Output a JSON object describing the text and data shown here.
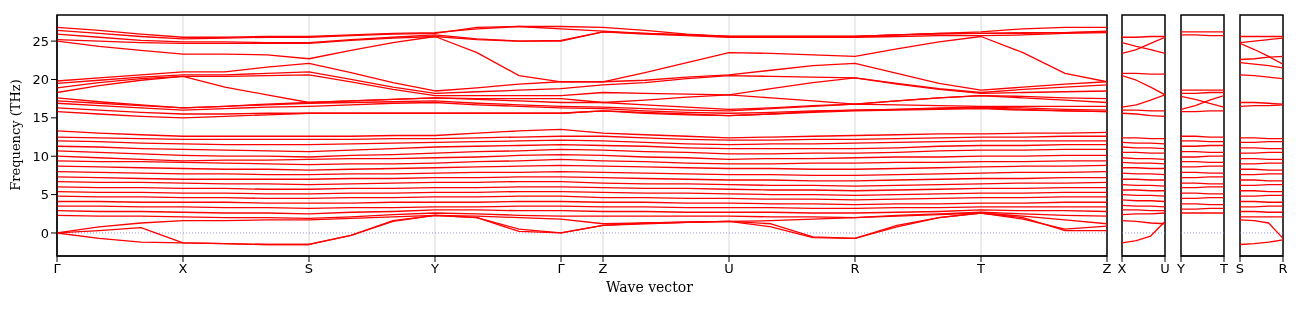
{
  "chart_data": [
    {
      "type": "line",
      "xlabel": "Wave vector",
      "ylabel": "Frequency (THz)",
      "color": "#ff0000",
      "grid": "x",
      "ylim": [
        -3,
        28.4
      ],
      "yticks": [
        0,
        5,
        10,
        15,
        20,
        25
      ],
      "categories": [
        "Γ",
        null,
        null,
        "X",
        null,
        null,
        "S",
        null,
        null,
        "Y",
        null,
        null,
        "Γ",
        "Z",
        null,
        null,
        "U",
        null,
        null,
        "R",
        null,
        null,
        "T",
        null,
        null,
        "Z"
      ],
      "ref_lines": [
        {
          "axis": "y",
          "value": 0,
          "color": "#7777ff",
          "line_style": "dotted"
        }
      ],
      "series": [
        {
          "values": [
            26.8,
            26.4,
            25.9,
            25.5,
            25.5,
            25.6,
            25.6,
            25.8,
            26.0,
            26.1,
            26.6,
            26.9,
            26.9,
            26.8,
            26.4,
            25.9,
            25.6,
            25.6,
            25.6,
            25.6,
            25.8,
            26.0,
            26.2,
            26.6,
            26.8,
            26.8
          ]
        },
        {
          "values": [
            26.4,
            26.0,
            25.6,
            25.3,
            25.4,
            25.5,
            25.5,
            25.7,
            25.9,
            26.0,
            26.8,
            26.9,
            26.6,
            26.3,
            26.0,
            25.8,
            25.6,
            25.6,
            25.6,
            25.6,
            25.8,
            26.0,
            26.0,
            26.0,
            26.1,
            26.3
          ]
        },
        {
          "values": [
            25.9,
            25.5,
            25.1,
            24.9,
            24.9,
            24.8,
            24.8,
            25.2,
            25.5,
            25.8,
            25.3,
            25.0,
            25.1,
            26.2,
            26.0,
            25.8,
            25.6,
            25.6,
            25.6,
            25.6,
            25.8,
            25.9,
            26.0,
            26.1,
            26.1,
            26.2
          ]
        },
        {
          "values": [
            25.2,
            25.0,
            24.8,
            24.7,
            24.7,
            24.7,
            24.7,
            25.1,
            25.4,
            25.6,
            25.2,
            25.0,
            25.0,
            26.2,
            25.9,
            25.7,
            25.5,
            25.5,
            25.5,
            25.5,
            25.6,
            25.7,
            25.7,
            25.8,
            26.0,
            26.1
          ]
        },
        {
          "values": [
            25.0,
            24.3,
            23.8,
            23.3,
            23.3,
            23.2,
            22.7,
            23.8,
            24.8,
            25.6,
            23.5,
            20.5,
            19.7,
            19.7,
            20.9,
            22.2,
            23.5,
            23.4,
            23.2,
            23.0,
            24.0,
            24.9,
            25.6,
            23.5,
            20.8,
            19.7
          ]
        },
        {
          "values": [
            19.8,
            20.2,
            20.6,
            21.0,
            21.0,
            21.6,
            22.1,
            20.9,
            19.6,
            18.5,
            18.9,
            19.4,
            19.7,
            19.7,
            19.9,
            20.3,
            20.6,
            21.2,
            21.8,
            22.1,
            20.8,
            19.5,
            18.6,
            19.0,
            19.4,
            19.7
          ]
        },
        {
          "values": [
            19.5,
            19.9,
            20.3,
            20.6,
            20.6,
            20.8,
            21.0,
            20.0,
            19.0,
            18.2,
            18.4,
            18.6,
            18.8,
            19.3,
            19.6,
            20.1,
            20.5,
            20.4,
            20.3,
            20.2,
            19.5,
            18.8,
            18.3,
            18.7,
            19.0,
            19.3
          ]
        },
        {
          "values": [
            18.9,
            19.6,
            20.1,
            20.4,
            20.4,
            20.5,
            20.6,
            19.7,
            18.7,
            17.9,
            17.9,
            17.9,
            17.9,
            18.3,
            18.2,
            18.1,
            18.0,
            18.8,
            19.6,
            20.2,
            19.4,
            18.7,
            18.2,
            18.3,
            18.4,
            18.5
          ]
        },
        {
          "values": [
            18.3,
            19.2,
            19.9,
            20.4,
            19.0,
            18.0,
            17.0,
            17.2,
            17.4,
            17.6,
            17.5,
            17.5,
            17.5,
            17.0,
            17.3,
            17.7,
            18.0,
            17.6,
            17.2,
            16.8,
            17.2,
            17.6,
            17.9,
            17.8,
            17.6,
            17.5
          ]
        },
        {
          "values": [
            17.6,
            17.1,
            16.7,
            16.3,
            16.5,
            16.8,
            17.0,
            17.2,
            17.4,
            17.6,
            17.4,
            17.2,
            17.0,
            17.0,
            16.7,
            16.4,
            16.1,
            16.3,
            16.6,
            16.8,
            17.2,
            17.6,
            17.9,
            17.6,
            17.3,
            17.0
          ]
        },
        {
          "values": [
            17.2,
            16.9,
            16.6,
            16.3,
            16.5,
            16.7,
            16.9,
            17.0,
            17.1,
            17.2,
            16.9,
            16.7,
            16.5,
            16.4,
            16.2,
            16.0,
            15.9,
            16.2,
            16.5,
            16.8,
            16.7,
            16.6,
            16.5,
            16.5,
            16.5,
            16.5
          ]
        },
        {
          "values": [
            16.9,
            16.6,
            16.3,
            16.0,
            16.2,
            16.4,
            16.5,
            16.7,
            16.9,
            17.0,
            16.7,
            16.5,
            16.3,
            16.2,
            15.9,
            15.7,
            15.6,
            15.7,
            15.9,
            16.0,
            16.1,
            16.3,
            16.4,
            16.3,
            16.1,
            16.0
          ]
        },
        {
          "values": [
            16.3,
            16.0,
            15.7,
            15.5,
            15.5,
            15.6,
            15.6,
            15.6,
            15.6,
            15.6,
            15.6,
            15.6,
            15.6,
            15.9,
            15.7,
            15.5,
            15.3,
            15.5,
            15.8,
            16.0,
            16.1,
            16.2,
            16.3,
            16.1,
            15.9,
            15.8
          ]
        },
        {
          "values": [
            15.8,
            15.5,
            15.2,
            15.0,
            15.2,
            15.4,
            15.6,
            15.6,
            15.6,
            15.6,
            15.6,
            15.6,
            15.6,
            15.9,
            15.6,
            15.4,
            15.3,
            15.5,
            15.7,
            15.9,
            16.0,
            16.1,
            16.2,
            16.0,
            15.9,
            15.8
          ]
        },
        {
          "values": [
            13.3,
            13.0,
            12.8,
            12.6,
            12.6,
            12.6,
            12.6,
            12.6,
            12.7,
            12.7,
            13.0,
            13.3,
            13.5,
            13.0,
            12.8,
            12.6,
            12.4,
            12.5,
            12.6,
            12.7,
            12.8,
            12.9,
            12.9,
            13.0,
            13.0,
            13.1
          ]
        },
        {
          "values": [
            12.5,
            12.4,
            12.3,
            12.2,
            12.2,
            12.2,
            12.2,
            12.2,
            12.3,
            12.3,
            12.4,
            12.5,
            12.6,
            12.6,
            12.4,
            12.2,
            12.1,
            12.1,
            12.2,
            12.2,
            12.3,
            12.4,
            12.5,
            12.5,
            12.6,
            12.6
          ]
        },
        {
          "values": [
            12.0,
            11.9,
            11.7,
            11.6,
            11.5,
            11.5,
            11.5,
            11.6,
            11.7,
            11.8,
            11.9,
            12.0,
            12.1,
            12.0,
            11.8,
            11.6,
            11.5,
            11.6,
            11.6,
            11.7,
            11.8,
            11.9,
            12.0,
            12.0,
            12.0,
            12.0
          ]
        },
        {
          "values": [
            11.3,
            11.2,
            11.0,
            10.9,
            10.8,
            10.7,
            10.6,
            10.8,
            11.0,
            11.2,
            11.3,
            11.4,
            11.5,
            11.4,
            11.3,
            11.1,
            11.0,
            11.0,
            11.0,
            11.0,
            11.1,
            11.3,
            11.4,
            11.4,
            11.5,
            11.5
          ]
        },
        {
          "values": [
            10.7,
            10.5,
            10.3,
            10.1,
            10.0,
            10.0,
            9.9,
            10.1,
            10.2,
            10.4,
            10.6,
            10.7,
            10.9,
            10.8,
            10.6,
            10.5,
            10.3,
            10.3,
            10.4,
            10.4,
            10.5,
            10.7,
            10.8,
            10.8,
            10.9,
            10.9
          ]
        },
        {
          "values": [
            10.0,
            9.8,
            9.6,
            9.4,
            9.5,
            9.5,
            9.6,
            9.7,
            9.7,
            9.8,
            9.9,
            10.1,
            10.2,
            10.1,
            9.9,
            9.8,
            9.6,
            9.7,
            9.7,
            9.8,
            9.9,
            9.9,
            10.0,
            10.0,
            10.1,
            10.1
          ]
        },
        {
          "values": [
            9.4,
            9.3,
            9.3,
            9.2,
            9.1,
            9.0,
            8.9,
            9.0,
            9.0,
            9.1,
            9.3,
            9.4,
            9.6,
            9.4,
            9.3,
            9.1,
            9.0,
            9.0,
            9.1,
            9.1,
            9.2,
            9.2,
            9.3,
            9.3,
            9.4,
            9.4
          ]
        },
        {
          "values": [
            8.7,
            8.6,
            8.5,
            8.4,
            8.3,
            8.3,
            8.2,
            8.3,
            8.4,
            8.5,
            8.6,
            8.7,
            8.8,
            8.7,
            8.6,
            8.5,
            8.4,
            8.4,
            8.3,
            8.3,
            8.4,
            8.5,
            8.6,
            8.7,
            8.7,
            8.8
          ]
        },
        {
          "values": [
            8.0,
            7.9,
            7.8,
            7.7,
            7.7,
            7.6,
            7.6,
            7.7,
            7.7,
            7.8,
            7.9,
            7.9,
            8.0,
            7.9,
            7.8,
            7.7,
            7.6,
            7.6,
            7.5,
            7.5,
            7.6,
            7.7,
            7.8,
            7.9,
            7.9,
            8.0
          ]
        },
        {
          "values": [
            7.3,
            7.2,
            7.1,
            7.0,
            7.0,
            7.0,
            7.0,
            7.1,
            7.1,
            7.2,
            7.2,
            7.3,
            7.3,
            7.2,
            7.1,
            7.0,
            6.9,
            6.9,
            6.8,
            6.8,
            6.9,
            7.0,
            7.1,
            7.1,
            7.2,
            7.2
          ]
        },
        {
          "values": [
            6.7,
            6.6,
            6.6,
            6.5,
            6.4,
            6.4,
            6.3,
            6.4,
            6.5,
            6.6,
            6.6,
            6.7,
            6.7,
            6.5,
            6.4,
            6.4,
            6.3,
            6.2,
            6.2,
            6.1,
            6.2,
            6.3,
            6.4,
            6.5,
            6.5,
            6.6
          ]
        },
        {
          "values": [
            6.0,
            5.9,
            5.9,
            5.8,
            5.8,
            5.7,
            5.7,
            5.8,
            5.8,
            5.9,
            5.9,
            6.0,
            6.0,
            5.9,
            5.8,
            5.8,
            5.7,
            5.6,
            5.6,
            5.5,
            5.6,
            5.7,
            5.8,
            5.8,
            5.9,
            5.9
          ]
        },
        {
          "values": [
            5.4,
            5.3,
            5.3,
            5.2,
            5.2,
            5.1,
            5.1,
            5.2,
            5.2,
            5.3,
            5.3,
            5.4,
            5.4,
            5.3,
            5.2,
            5.2,
            5.1,
            5.0,
            5.0,
            4.9,
            5.0,
            5.1,
            5.2,
            5.2,
            5.3,
            5.3
          ]
        },
        {
          "values": [
            4.8,
            4.7,
            4.7,
            4.6,
            4.6,
            4.5,
            4.5,
            4.6,
            4.6,
            4.7,
            4.7,
            4.8,
            4.8,
            4.6,
            4.6,
            4.5,
            4.5,
            4.4,
            4.4,
            4.3,
            4.4,
            4.5,
            4.6,
            4.6,
            4.7,
            4.7
          ]
        },
        {
          "values": [
            4.1,
            4.1,
            4.0,
            4.0,
            4.0,
            3.9,
            3.9,
            3.9,
            4.0,
            4.0,
            4.0,
            4.1,
            4.1,
            4.0,
            4.0,
            3.9,
            3.9,
            3.8,
            3.8,
            3.7,
            3.8,
            3.8,
            3.9,
            3.9,
            4.0,
            4.0
          ]
        },
        {
          "values": [
            3.5,
            3.5,
            3.4,
            3.4,
            3.3,
            3.3,
            3.2,
            3.3,
            3.3,
            3.4,
            3.4,
            3.5,
            3.5,
            3.4,
            3.4,
            3.3,
            3.3,
            3.3,
            3.2,
            3.2,
            3.3,
            3.3,
            3.4,
            3.4,
            3.4,
            3.4
          ]
        },
        {
          "values": [
            2.9,
            2.8,
            2.8,
            2.7,
            2.6,
            2.6,
            2.5,
            2.7,
            2.8,
            3.0,
            3.0,
            2.9,
            2.9,
            2.8,
            2.8,
            2.7,
            2.7,
            2.7,
            2.6,
            2.6,
            2.7,
            2.8,
            3.0,
            2.9,
            2.9,
            2.8
          ]
        },
        {
          "values": [
            2.3,
            2.2,
            2.2,
            2.1,
            2.0,
            2.0,
            1.9,
            2.1,
            2.4,
            2.6,
            2.5,
            2.3,
            2.2,
            2.2,
            2.2,
            2.2,
            2.2,
            2.1,
            2.1,
            2.0,
            2.3,
            2.5,
            2.7,
            2.5,
            2.3,
            2.2
          ]
        },
        {
          "values": [
            0,
            0.8,
            1.3,
            1.6,
            1.6,
            1.7,
            1.7,
            1.9,
            2.1,
            2.3,
            2.2,
            2.0,
            1.8,
            1.2,
            1.3,
            1.4,
            1.5,
            1.6,
            1.8,
            2.0,
            2.2,
            2.4,
            2.6,
            2.2,
            1.7,
            1.2
          ]
        },
        {
          "values": [
            0,
            -0.7,
            -1.2,
            -1.3,
            -1.4,
            -1.5,
            -1.5,
            -0.3,
            1.5,
            2.3,
            2.0,
            0.2,
            0,
            1.0,
            1.3,
            1.4,
            1.5,
            1.2,
            -0.5,
            -0.7,
            1.0,
            2.0,
            2.6,
            2.0,
            0.3,
            0.3
          ]
        },
        {
          "values": [
            0,
            0.3,
            0.7,
            -1.3,
            -1.4,
            -1.5,
            -1.5,
            -0.3,
            1.6,
            2.3,
            2.0,
            0.5,
            0,
            1.0,
            1.2,
            1.4,
            1.5,
            0.8,
            -0.6,
            -0.7,
            0.8,
            2.0,
            2.6,
            1.8,
            0.5,
            0.9
          ]
        }
      ]
    },
    {
      "type": "line",
      "color": "#ff0000",
      "tick_labels": "x",
      "ylim": [
        -3,
        28.4
      ],
      "categories": [
        "X",
        null,
        null,
        "U"
      ],
      "ref_lines": [
        {
          "axis": "y",
          "value": 0,
          "color": "#7777ff",
          "line_style": "dotted"
        }
      ],
      "series": [
        {
          "values": [
            25.5,
            25.5,
            25.6,
            25.6
          ]
        },
        {
          "values": [
            24.8,
            24.3,
            23.9,
            23.4
          ]
        },
        {
          "values": [
            23.4,
            23.9,
            24.7,
            25.5
          ]
        },
        {
          "values": [
            20.8,
            20.8,
            20.7,
            20.7
          ]
        },
        {
          "values": [
            20.5,
            19.9,
            19.0,
            18.0
          ]
        },
        {
          "values": [
            16.4,
            16.7,
            17.3,
            18.0
          ]
        },
        {
          "values": [
            16.0,
            16.0,
            15.9,
            15.9
          ]
        },
        {
          "values": [
            15.6,
            15.5,
            15.3,
            15.2
          ]
        },
        {
          "values": [
            12.4,
            12.4,
            12.3,
            12.3
          ]
        },
        {
          "values": [
            11.8,
            11.7,
            11.7,
            11.6
          ]
        },
        {
          "values": [
            11.2,
            11.1,
            11.1,
            11.0
          ]
        },
        {
          "values": [
            10.5,
            10.5,
            10.4,
            10.4
          ]
        },
        {
          "values": [
            9.8,
            9.7,
            9.7,
            9.6
          ]
        },
        {
          "values": [
            9.2,
            9.1,
            9.1,
            9.0
          ]
        },
        {
          "values": [
            8.5,
            8.5,
            8.4,
            8.4
          ]
        },
        {
          "values": [
            7.8,
            7.7,
            7.7,
            7.6
          ]
        },
        {
          "values": [
            7.0,
            7.0,
            6.9,
            6.9
          ]
        },
        {
          "values": [
            6.3,
            6.2,
            6.2,
            6.1
          ]
        },
        {
          "values": [
            5.6,
            5.6,
            5.5,
            5.5
          ]
        },
        {
          "values": [
            5.0,
            4.9,
            4.9,
            4.8
          ]
        },
        {
          "values": [
            4.3,
            4.2,
            4.2,
            4.1
          ]
        },
        {
          "values": [
            3.6,
            3.5,
            3.5,
            3.4
          ]
        },
        {
          "values": [
            3.0,
            3.0,
            2.9,
            2.9
          ]
        },
        {
          "values": [
            2.4,
            2.5,
            2.5,
            2.6
          ]
        },
        {
          "values": [
            1.6,
            1.5,
            1.3,
            1.2
          ]
        },
        {
          "values": [
            -1.3,
            -1.0,
            -0.4,
            1.5
          ]
        }
      ]
    },
    {
      "type": "line",
      "color": "#ff0000",
      "tick_labels": "x",
      "ylim": [
        -3,
        28.4
      ],
      "categories": [
        "Y",
        null,
        null,
        "T"
      ],
      "ref_lines": [
        {
          "axis": "y",
          "value": 0,
          "color": "#7777ff",
          "line_style": "dotted"
        }
      ],
      "series": [
        {
          "values": [
            26.2,
            26.2,
            26.2,
            26.2
          ]
        },
        {
          "values": [
            25.8,
            25.8,
            25.7,
            25.7
          ]
        },
        {
          "values": [
            18.6,
            18.6,
            18.6,
            18.6
          ]
        },
        {
          "values": [
            18.2,
            18.2,
            18.3,
            18.3
          ]
        },
        {
          "values": [
            17.8,
            17.4,
            16.9,
            16.4
          ]
        },
        {
          "values": [
            16.1,
            16.6,
            17.3,
            17.9
          ]
        },
        {
          "values": [
            15.8,
            15.8,
            15.9,
            15.9
          ]
        },
        {
          "values": [
            12.6,
            12.6,
            12.5,
            12.5
          ]
        },
        {
          "values": [
            12.0,
            12.0,
            11.9,
            11.9
          ]
        },
        {
          "values": [
            11.3,
            11.3,
            11.4,
            11.4
          ]
        },
        {
          "values": [
            10.6,
            10.6,
            10.5,
            10.5
          ]
        },
        {
          "values": [
            9.9,
            9.9,
            10.0,
            10.0
          ]
        },
        {
          "values": [
            9.3,
            9.3,
            9.2,
            9.2
          ]
        },
        {
          "values": [
            8.6,
            8.6,
            8.7,
            8.7
          ]
        },
        {
          "values": [
            7.9,
            7.9,
            7.8,
            7.8
          ]
        },
        {
          "values": [
            7.2,
            7.2,
            7.3,
            7.3
          ]
        },
        {
          "values": [
            6.5,
            6.5,
            6.4,
            6.4
          ]
        },
        {
          "values": [
            5.9,
            5.9,
            6.0,
            6.0
          ]
        },
        {
          "values": [
            5.2,
            5.2,
            5.1,
            5.1
          ]
        },
        {
          "values": [
            4.5,
            4.5,
            4.6,
            4.6
          ]
        },
        {
          "values": [
            3.8,
            3.8,
            3.7,
            3.7
          ]
        },
        {
          "values": [
            3.1,
            3.1,
            3.2,
            3.2
          ]
        },
        {
          "values": [
            2.6,
            2.6,
            2.6,
            2.6
          ]
        }
      ]
    },
    {
      "type": "line",
      "color": "#ff0000",
      "tick_labels": "x",
      "ylim": [
        -3,
        28.4
      ],
      "categories": [
        "S",
        null,
        null,
        "R"
      ],
      "ref_lines": [
        {
          "axis": "y",
          "value": 0,
          "color": "#7777ff",
          "line_style": "dotted"
        }
      ],
      "series": [
        {
          "values": [
            25.6,
            25.6,
            25.6,
            25.6
          ]
        },
        {
          "values": [
            24.8,
            25.0,
            25.2,
            25.4
          ]
        },
        {
          "values": [
            24.7,
            23.9,
            23.0,
            22.0
          ]
        },
        {
          "values": [
            22.6,
            22.7,
            22.9,
            23.0
          ]
        },
        {
          "values": [
            22.2,
            22.0,
            21.8,
            21.5
          ]
        },
        {
          "values": [
            20.6,
            20.5,
            20.3,
            20.1
          ]
        },
        {
          "values": [
            17.0,
            17.0,
            16.9,
            16.8
          ]
        },
        {
          "values": [
            16.5,
            16.6,
            16.6,
            16.7
          ]
        },
        {
          "values": [
            12.4,
            12.4,
            12.3,
            12.3
          ]
        },
        {
          "values": [
            11.8,
            11.8,
            11.9,
            11.9
          ]
        },
        {
          "values": [
            11.1,
            11.1,
            11.0,
            11.0
          ]
        },
        {
          "values": [
            10.4,
            10.4,
            10.5,
            10.5
          ]
        },
        {
          "values": [
            9.7,
            9.7,
            9.6,
            9.6
          ]
        },
        {
          "values": [
            9.0,
            9.0,
            9.1,
            9.1
          ]
        },
        {
          "values": [
            8.3,
            8.3,
            8.2,
            8.2
          ]
        },
        {
          "values": [
            7.6,
            7.6,
            7.7,
            7.7
          ]
        },
        {
          "values": [
            6.9,
            6.9,
            6.8,
            6.8
          ]
        },
        {
          "values": [
            6.2,
            6.2,
            6.3,
            6.3
          ]
        },
        {
          "values": [
            5.5,
            5.5,
            5.4,
            5.4
          ]
        },
        {
          "values": [
            4.8,
            4.8,
            4.9,
            4.9
          ]
        },
        {
          "values": [
            4.1,
            4.1,
            4.0,
            4.0
          ]
        },
        {
          "values": [
            3.4,
            3.4,
            3.5,
            3.5
          ]
        },
        {
          "values": [
            2.8,
            2.8,
            2.7,
            2.7
          ]
        },
        {
          "values": [
            2.1,
            2.1,
            2.1,
            2.1
          ]
        },
        {
          "values": [
            1.7,
            1.6,
            1.3,
            -0.7
          ]
        },
        {
          "values": [
            -1.5,
            -1.4,
            -1.2,
            -0.9
          ]
        }
      ]
    }
  ]
}
